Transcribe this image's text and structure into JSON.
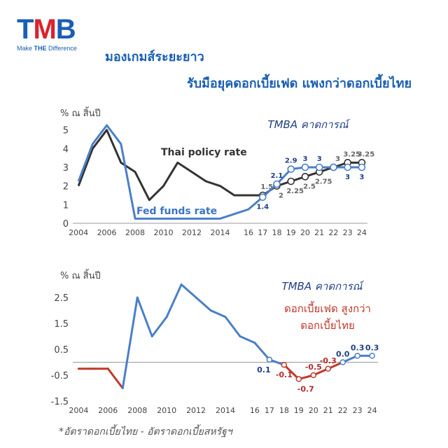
{
  "brand": {
    "logo_text": [
      "T",
      "M",
      "B"
    ],
    "tagline_pre": "Make ",
    "tagline_bold": "THE",
    "tagline_post": " Difference",
    "colors": {
      "blue": "#1a5fb4",
      "red": "#d9232e"
    }
  },
  "title": {
    "line1": "มองเกมส์ระยะยาว",
    "line2": "รับมือยุคดอกเบี้ยเฟด แพงกว่าดอกเบี้ยไทย"
  },
  "footnote": "*อัตราดอกเบี้ยไทย - อัตราดอกเบี้ยสหรัฐฯ",
  "chart_data": [
    {
      "type": "line",
      "unit_label": "% ณ สิ้นปี",
      "forecast_label": "TMBA คาดการณ์",
      "ylim": [
        0,
        6
      ],
      "yticks": [
        "0",
        "1",
        "2",
        "3",
        "4",
        "5",
        "6"
      ],
      "xlim": [
        2003.6,
        2024.4
      ],
      "xtick_values": [
        2004,
        2006,
        2008,
        2010,
        2012,
        2014,
        2016,
        2017,
        2018,
        2019,
        2020,
        2021,
        2022,
        2023,
        2024
      ],
      "xtick_labels": [
        "2004",
        "2006",
        "2008",
        "2010",
        "2012",
        "2014",
        "16",
        "17",
        "18",
        "19",
        "20",
        "21",
        "22",
        "23",
        "24"
      ],
      "series": [
        {
          "name": "Thai policy rate",
          "color": "#333333",
          "x": [
            2004,
            2005,
            2006,
            2007,
            2008,
            2009,
            2010,
            2011,
            2012,
            2013,
            2014,
            2015,
            2016,
            2017,
            2018,
            2019,
            2020,
            2021,
            2022,
            2023,
            2024
          ],
          "y": [
            2.0,
            4.0,
            5.0,
            3.25,
            2.75,
            1.25,
            2.0,
            3.25,
            2.75,
            2.25,
            2.0,
            1.5,
            1.5,
            1.5,
            2.0,
            2.25,
            2.5,
            2.75,
            3.0,
            3.25,
            3.25
          ],
          "forecast_from": 2017,
          "point_labels": [
            {
              "x": 2017,
              "text": "1.5",
              "pos": "above"
            },
            {
              "x": 2018,
              "text": "2",
              "pos": "below"
            },
            {
              "x": 2019,
              "text": "2.25",
              "pos": "below"
            },
            {
              "x": 2020,
              "text": "2.5",
              "pos": "below"
            },
            {
              "x": 2021,
              "text": "2.75",
              "pos": "below"
            },
            {
              "x": 2022,
              "text": "3",
              "pos": "above"
            },
            {
              "x": 2023,
              "text": "3.25",
              "pos": "above"
            },
            {
              "x": 2024,
              "text": "3.25",
              "pos": "above"
            }
          ]
        },
        {
          "name": "Fed funds rate",
          "color": "#4a7fc9",
          "x": [
            2004,
            2005,
            2006,
            2007,
            2008,
            2009,
            2010,
            2011,
            2012,
            2013,
            2014,
            2015,
            2016,
            2017,
            2018,
            2019,
            2020,
            2021,
            2022,
            2023,
            2024
          ],
          "y": [
            2.25,
            4.25,
            5.25,
            4.25,
            0.25,
            0.25,
            0.25,
            0.25,
            0.25,
            0.25,
            0.25,
            0.5,
            0.75,
            1.4,
            2.1,
            2.9,
            3.0,
            3.0,
            3.0,
            3.0,
            3.0
          ],
          "forecast_from": 2017,
          "point_labels": [
            {
              "x": 2017,
              "text": "1.4",
              "pos": "below"
            },
            {
              "x": 2018,
              "text": "2.1",
              "pos": "above"
            },
            {
              "x": 2019,
              "text": "2.9",
              "pos": "above"
            },
            {
              "x": 2020,
              "text": "3",
              "pos": "above"
            },
            {
              "x": 2021,
              "text": "3",
              "pos": "above"
            },
            {
              "x": 2023,
              "text": "3",
              "pos": "below"
            },
            {
              "x": 2024,
              "text": "3",
              "pos": "below"
            }
          ]
        }
      ]
    },
    {
      "type": "line",
      "unit_label": "% ณ สิ้นปี",
      "forecast_label": "TMBA คาดการณ์",
      "note": [
        "ดอกเบี้ยเฟด สูงกว่า",
        "ดอกเบี้ยไทย"
      ],
      "ylim": [
        -1.5,
        2.5
      ],
      "yticks": [
        "-1.5",
        "-0.5",
        "0.5",
        "1.5",
        "2.5"
      ],
      "ytick_values": [
        -1.5,
        -0.5,
        0.5,
        1.5,
        2.5
      ],
      "xlim": [
        2003.6,
        2024.4
      ],
      "xtick_values": [
        2004,
        2006,
        2008,
        2010,
        2012,
        2014,
        2016,
        2017,
        2018,
        2019,
        2020,
        2021,
        2022,
        2023,
        2024
      ],
      "xtick_labels": [
        "2004",
        "2006",
        "2008",
        "2010",
        "2012",
        "2014",
        "16",
        "17",
        "18",
        "19",
        "20",
        "21",
        "22",
        "23",
        "24"
      ],
      "positive_color": "#4a7fc9",
      "negative_color": "#c0392b",
      "x": [
        2004,
        2005,
        2006,
        2007,
        2008,
        2009,
        2010,
        2011,
        2012,
        2013,
        2014,
        2015,
        2016,
        2017,
        2018,
        2019,
        2020,
        2021,
        2022,
        2023,
        2024
      ],
      "y": [
        -0.25,
        -0.25,
        -0.25,
        -1.0,
        2.5,
        1.0,
        1.75,
        3.0,
        2.5,
        2.0,
        1.75,
        1.0,
        0.75,
        0.1,
        -0.1,
        -0.65,
        -0.5,
        -0.25,
        0.0,
        0.25,
        0.25
      ],
      "point_labels": [
        {
          "x": 2017,
          "text": "0.1",
          "style": "navy",
          "pos": "below-left"
        },
        {
          "x": 2018,
          "text": "-0.1",
          "style": "red",
          "pos": "below"
        },
        {
          "x": 2019,
          "text": "-0.7",
          "style": "red",
          "pos": "below-right"
        },
        {
          "x": 2020,
          "text": "-0.5",
          "style": "red",
          "pos": "above"
        },
        {
          "x": 2021,
          "text": "-0.3",
          "style": "red",
          "pos": "above"
        },
        {
          "x": 2022,
          "text": "0.0",
          "style": "navy",
          "pos": "above"
        },
        {
          "x": 2023,
          "text": "0.3",
          "style": "navy",
          "pos": "above"
        },
        {
          "x": 2024,
          "text": "0.3",
          "style": "navy",
          "pos": "above"
        }
      ]
    }
  ]
}
